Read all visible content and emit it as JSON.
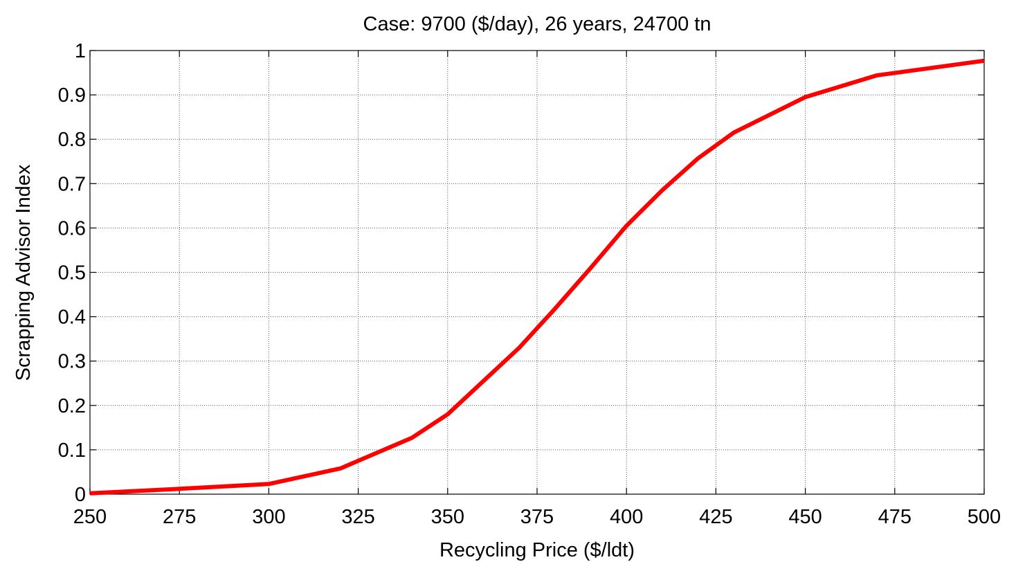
{
  "chart_data": {
    "type": "line",
    "title": "Case: 9700 ($/day), 26 years, 24700 tn",
    "xlabel": "Recycling Price ($/ldt)",
    "ylabel": "Scrapping Advisor Index",
    "x": [
      250,
      275,
      300,
      320,
      340,
      350,
      370,
      380,
      390,
      400,
      410,
      420,
      430,
      450,
      470,
      500
    ],
    "series": [
      {
        "color": "#ff0000",
        "values": [
          0.002,
          0.012,
          0.023,
          0.058,
          0.127,
          0.18,
          0.33,
          0.418,
          0.51,
          0.605,
          0.685,
          0.757,
          0.815,
          0.895,
          0.944,
          0.977
        ]
      }
    ],
    "xlim": [
      250,
      500
    ],
    "xticks": [
      250,
      275,
      300,
      325,
      350,
      375,
      400,
      425,
      450,
      475,
      500
    ],
    "ylim": [
      0,
      1
    ],
    "yticks": [
      0,
      0.1,
      0.2,
      0.3,
      0.4,
      0.5,
      0.6,
      0.7,
      0.8,
      0.9,
      1
    ],
    "grid": true
  }
}
